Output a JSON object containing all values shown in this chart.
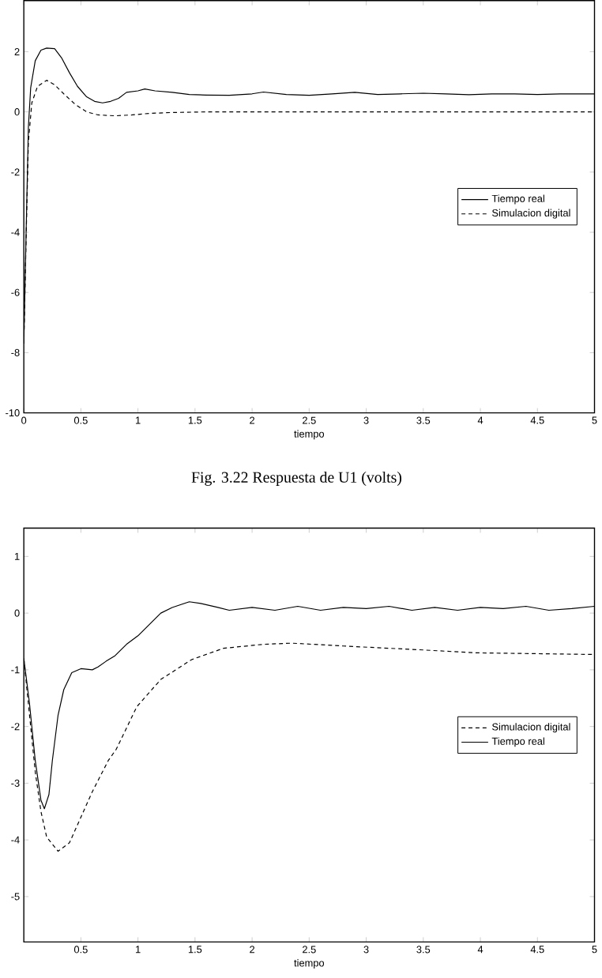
{
  "chart_data": [
    {
      "type": "line",
      "xlabel": "tiempo",
      "annotations": [
        "Fig. 3.22  Respuesta de U1 (volts)"
      ],
      "xlim": [
        0,
        5
      ],
      "ylim": [
        -10,
        3.7
      ],
      "xticks": [
        0,
        0.5,
        1,
        1.5,
        2,
        2.5,
        3,
        3.5,
        4,
        4.5,
        5
      ],
      "yticks": [
        -10,
        -8,
        -6,
        -4,
        -2,
        0,
        2
      ],
      "legend": "right",
      "grid": false,
      "marker": "none",
      "series": [
        {
          "name": "Tiempo real",
          "color": "#000000",
          "line_style": "solid",
          "x": [
            0,
            0.02,
            0.04,
            0.06,
            0.1,
            0.15,
            0.2,
            0.27,
            0.33,
            0.4,
            0.47,
            0.55,
            0.62,
            0.69,
            0.76,
            0.83,
            0.9,
            1.0,
            1.06,
            1.15,
            1.3,
            1.45,
            1.6,
            1.8,
            2.0,
            2.1,
            2.3,
            2.5,
            2.7,
            2.9,
            3.1,
            3.3,
            3.5,
            3.7,
            3.9,
            4.1,
            4.3,
            4.5,
            4.7,
            4.9,
            5
          ],
          "values": [
            -7.7,
            -4,
            -0.5,
            0.8,
            1.7,
            2.05,
            2.12,
            2.1,
            1.8,
            1.3,
            0.85,
            0.5,
            0.35,
            0.3,
            0.35,
            0.45,
            0.65,
            0.7,
            0.76,
            0.7,
            0.65,
            0.58,
            0.56,
            0.55,
            0.6,
            0.66,
            0.58,
            0.55,
            0.6,
            0.65,
            0.58,
            0.6,
            0.62,
            0.6,
            0.57,
            0.6,
            0.6,
            0.58,
            0.6,
            0.6,
            0.6
          ]
        },
        {
          "name": "Simulacion digital",
          "color": "#000000",
          "line_style": "dashed",
          "x": [
            0,
            0.02,
            0.04,
            0.07,
            0.12,
            0.2,
            0.27,
            0.35,
            0.45,
            0.55,
            0.65,
            0.8,
            0.95,
            1.1,
            1.3,
            1.6,
            2,
            5
          ],
          "values": [
            -7.7,
            -4.2,
            -1,
            0.3,
            0.85,
            1.05,
            0.9,
            0.6,
            0.25,
            0,
            -0.1,
            -0.13,
            -0.1,
            -0.05,
            -0.02,
            0,
            0,
            0
          ]
        }
      ]
    },
    {
      "type": "line",
      "xlabel": "tiempo",
      "xlim": [
        0,
        5
      ],
      "ylim": [
        -5.8,
        1.5
      ],
      "xticks": [
        0.5,
        1,
        1.5,
        2,
        2.5,
        3,
        3.5,
        4,
        4.5,
        5
      ],
      "yticks": [
        -5,
        -4,
        -3,
        -2,
        -1,
        0,
        1
      ],
      "legend": "right",
      "grid": false,
      "marker": "none",
      "series": [
        {
          "name": "Simulacion digital",
          "color": "#000000",
          "line_style": "dashed",
          "x": [
            0,
            0.05,
            0.1,
            0.15,
            0.2,
            0.3,
            0.4,
            0.5,
            0.6,
            0.74,
            0.81,
            0.99,
            1.2,
            1.47,
            1.75,
            2.1,
            2.35,
            2.8,
            3.5,
            3.95,
            5
          ],
          "values": [
            -0.8,
            -1.8,
            -2.8,
            -3.5,
            -3.95,
            -4.2,
            -4.05,
            -3.6,
            -3.15,
            -2.6,
            -2.4,
            -1.65,
            -1.17,
            -0.82,
            -0.62,
            -0.55,
            -0.53,
            -0.58,
            -0.65,
            -0.7,
            -0.73
          ]
        },
        {
          "name": "Tiempo real",
          "color": "#000000",
          "line_style": "solid",
          "x": [
            0,
            0.05,
            0.1,
            0.15,
            0.18,
            0.22,
            0.25,
            0.3,
            0.35,
            0.42,
            0.5,
            0.6,
            0.65,
            0.72,
            0.8,
            0.9,
            1.0,
            1.1,
            1.2,
            1.3,
            1.45,
            1.55,
            1.7,
            1.8,
            2.0,
            2.2,
            2.4,
            2.6,
            2.8,
            3.0,
            3.2,
            3.4,
            3.6,
            3.8,
            4.0,
            4.2,
            4.4,
            4.6,
            4.8,
            5.0
          ],
          "values": [
            -0.8,
            -1.6,
            -2.6,
            -3.3,
            -3.45,
            -3.2,
            -2.6,
            -1.8,
            -1.35,
            -1.05,
            -0.98,
            -1.0,
            -0.95,
            -0.85,
            -0.75,
            -0.55,
            -0.4,
            -0.2,
            0.0,
            0.1,
            0.2,
            0.17,
            0.1,
            0.05,
            0.1,
            0.05,
            0.12,
            0.05,
            0.1,
            0.08,
            0.12,
            0.05,
            0.1,
            0.05,
            0.1,
            0.08,
            0.12,
            0.05,
            0.08,
            0.12
          ]
        }
      ]
    }
  ]
}
